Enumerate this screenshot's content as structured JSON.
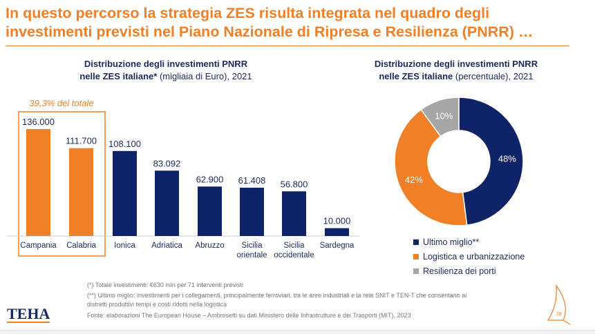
{
  "title_line1": "In questo percorso la strategia ZES risulta integrata nel quadro degli",
  "title_line2": "investimenti previsti nel Piano Nazionale di Ripresa e Resilienza (PNRR) …",
  "colors": {
    "accent": "#f07f26",
    "navy": "#0f2466",
    "gray": "#a6a6a6"
  },
  "chart_data": [
    {
      "type": "bar",
      "title_bold_1": "Distribuzione degli investimenti PNRR",
      "title_bold_2": "nelle ZES italiane*",
      "title_rest": " (migliaia di Euro), 2021",
      "categories": [
        "Campania",
        "Calabria",
        "Ionica",
        "Adriatica",
        "Abruzzo",
        "Sicilia orientale",
        "Sicilia occidentale",
        "Sardegna"
      ],
      "values": [
        136000,
        111700,
        108100,
        83092,
        62900,
        61408,
        56800,
        10000
      ],
      "value_labels": [
        "136.000",
        "111.700",
        "108.100",
        "83.092",
        "62.900",
        "61.408",
        "56.800",
        "10.000"
      ],
      "highlight": [
        "Campania",
        "Calabria"
      ],
      "annotation": "39,3% del totale"
    },
    {
      "type": "pie",
      "donut": true,
      "title_bold_1": "Distribuzione degli investimenti PNRR",
      "title_bold_2": "nelle ZES italiane",
      "title_rest": " (percentuale), 2021",
      "slices": [
        {
          "label": "Ultimo miglio**",
          "value": 48,
          "text": "48%",
          "color": "#0f2466"
        },
        {
          "label": "Logistica e urbanizzazione",
          "value": 42,
          "text": "42%",
          "color": "#f07f26"
        },
        {
          "label": "Resilienza dei porti",
          "value": 10,
          "text": "10%",
          "color": "#a6a6a6"
        }
      ],
      "legend_position": "bottom"
    }
  ],
  "notes": [
    "(*) Totale investimenti: €630 mln per 71 interventi previsti",
    "(**) Ultimo miglio: investimenti per i collegamenti, principalmente ferroviari, tra le aree industriali e la rete SNIT e TEN-T che consentano ai",
    "distretti produttivi tempi e costi ridotti nella logistica",
    "Fonte: elaborazioni The European House – Ambrosetti su dati Ministero delle Infrastrutture e dei Trasporti (MIT), 2023"
  ],
  "logo": "TEHA",
  "page_number": "28"
}
